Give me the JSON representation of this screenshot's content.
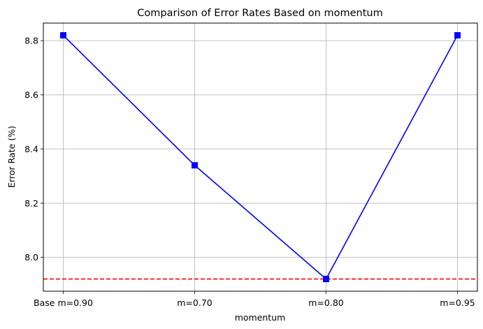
{
  "chart_data": {
    "type": "line",
    "title": "Comparison of Error Rates Based on momentum",
    "xlabel": "momentum",
    "ylabel": "Error Rate (%)",
    "categories": [
      "Base m=0.90",
      "m=0.70",
      "m=0.80",
      "m=0.95"
    ],
    "series": [
      {
        "values": [
          8.82,
          8.34,
          7.92,
          8.82
        ],
        "color": "#0000ff",
        "marker": "square"
      }
    ],
    "reference_line": {
      "y": 7.92,
      "color": "#ff0000",
      "style": "dashed"
    },
    "ylim": [
      7.875,
      8.865
    ],
    "yticks": [
      8.0,
      8.2,
      8.4,
      8.6,
      8.8
    ],
    "ytick_labels": [
      "8.0",
      "8.2",
      "8.4",
      "8.6",
      "8.8"
    ],
    "grid": true
  }
}
